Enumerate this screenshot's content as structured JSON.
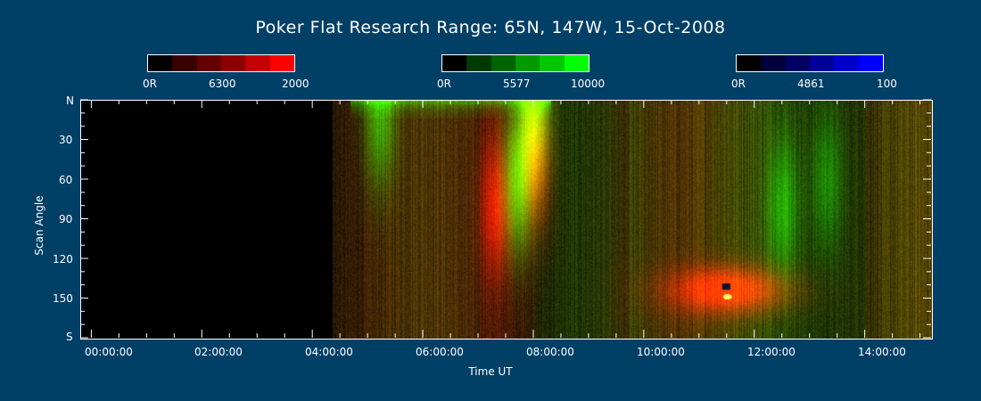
{
  "title": "Poker Flat Research Range: 65N, 147W, 15-Oct-2008",
  "colorbars": [
    {
      "low": "0R",
      "wavelength": "6300",
      "high": "2000",
      "colors": [
        "#000000",
        "#3a0000",
        "#640000",
        "#8e0000",
        "#c40000",
        "#ff0000"
      ]
    },
    {
      "low": "0R",
      "wavelength": "5577",
      "high": "10000",
      "colors": [
        "#000000",
        "#003a00",
        "#006400",
        "#009a00",
        "#00c800",
        "#00ff00"
      ]
    },
    {
      "low": "0R",
      "wavelength": "4861",
      "high": "100",
      "colors": [
        "#000000",
        "#00003a",
        "#000064",
        "#00009a",
        "#0000c8",
        "#0000ff"
      ]
    }
  ],
  "axes": {
    "ylabel": "Scan Angle",
    "xlabel": "Time UT",
    "yticks": [
      "N",
      "30",
      "60",
      "90",
      "120",
      "150",
      "S"
    ],
    "xticks": [
      "00:00:00",
      "02:00:00",
      "04:00:00",
      "06:00:00",
      "08:00:00",
      "10:00:00",
      "12:00:00",
      "14:00:00"
    ]
  },
  "chart_data": {
    "type": "heatmap",
    "title": "Poker Flat Research Range: 65N, 147W, 15-Oct-2008",
    "xlabel": "Time UT",
    "ylabel": "Scan Angle",
    "x_range_hours": [
      -0.2,
      15.2
    ],
    "y_range_deg": [
      0,
      180
    ],
    "channels": [
      {
        "name": "6300",
        "color": "#ff0000",
        "range": [
          0,
          2000
        ]
      },
      {
        "name": "5577",
        "color": "#00ff00",
        "range": [
          0,
          10000
        ]
      },
      {
        "name": "4861",
        "color": "#0000ff",
        "range": [
          0,
          100
        ]
      }
    ],
    "data_start_hour": 4.35,
    "features": [
      {
        "channel": "5577",
        "t": 7.7,
        "angle": 60,
        "intensity": 0.85
      },
      {
        "channel": "5577",
        "t": 5.2,
        "angle": 10,
        "intensity": 0.6
      },
      {
        "channel": "5577",
        "t": 8.0,
        "angle": 5,
        "intensity": 0.9
      },
      {
        "channel": "6300",
        "t": 8.0,
        "angle": 40,
        "intensity": 0.9
      },
      {
        "channel": "6300",
        "t": 7.3,
        "angle": 80,
        "intensity": 0.7
      },
      {
        "channel": "5577",
        "t": 12.5,
        "angle": 80,
        "intensity": 0.5
      },
      {
        "channel": "5577",
        "t": 13.3,
        "angle": 60,
        "intensity": 0.4
      },
      {
        "channel": "6300",
        "t": 11.5,
        "angle": 143,
        "intensity": 1.0
      }
    ]
  }
}
